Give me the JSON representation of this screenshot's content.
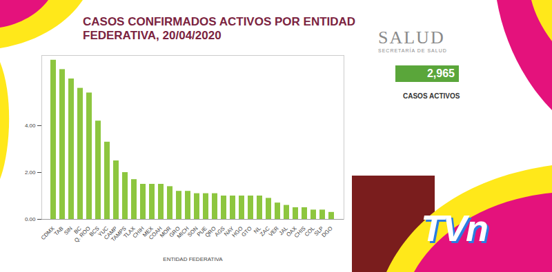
{
  "chart_data": {
    "type": "bar",
    "title": "CASOS CONFIRMADOS ACTIVOS POR ENTIDAD FEDERATIVA, 20/04/2020",
    "xlabel": "ENTIDAD FEDERATIVA",
    "categories": [
      "CDMX",
      "TAB",
      "SIN",
      "BC",
      "Q. ROO",
      "BCS",
      "YUC",
      "CAMP",
      "TAMPS",
      "TLAX",
      "CHIH",
      "MEX",
      "COAH",
      "MOR",
      "GRO",
      "MICH",
      "SON",
      "PUE",
      "QRO",
      "AGS",
      "NAY",
      "HGO",
      "GTO",
      "NL",
      "ZAC",
      "VER",
      "JAL",
      "OAX",
      "CHIS",
      "COL",
      "SLP",
      "DGO"
    ],
    "values": [
      6.8,
      6.4,
      6.0,
      5.6,
      5.4,
      4.2,
      3.3,
      2.5,
      2.0,
      1.7,
      1.5,
      1.5,
      1.5,
      1.4,
      1.2,
      1.2,
      1.1,
      1.1,
      1.1,
      1.0,
      1.0,
      1.0,
      1.0,
      1.0,
      0.9,
      0.7,
      0.6,
      0.5,
      0.5,
      0.4,
      0.4,
      0.3
    ],
    "color": "#8dc63f",
    "ylim": [
      0,
      7
    ],
    "yticks": [
      {
        "value": 0,
        "label": "0.00"
      },
      {
        "value": 2,
        "label": "2.00"
      },
      {
        "value": 4,
        "label": "4.00"
      }
    ],
    "grid": false,
    "annotations": [
      "SALUD",
      "SECRETARÍA DE SALUD",
      "2,965",
      "CASOS ACTIVOS",
      "TVn"
    ]
  }
}
